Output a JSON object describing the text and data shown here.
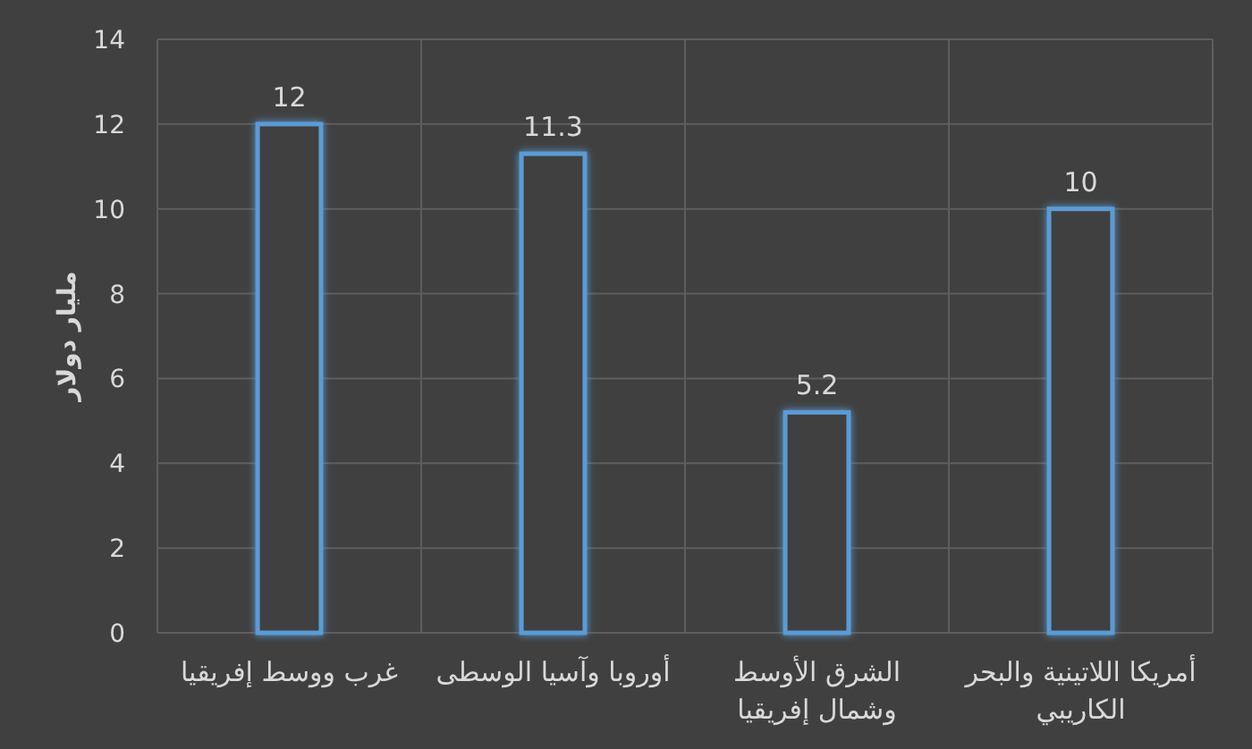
{
  "chart_data": {
    "type": "bar",
    "ylabel": "مليار دولار",
    "categories": [
      "غرب ووسط إفريقيا",
      "أوروبا وآسيا الوسطى",
      "الشرق الأوسط وشمال إفريقيا",
      "أمريكا اللاتينية والبحر الكاريبي"
    ],
    "values": [
      12,
      11.3,
      5.2,
      10
    ],
    "color": "#5b9bd5",
    "data_labels": true,
    "ylim": [
      0,
      14
    ],
    "yticks": [
      0,
      2,
      4,
      6,
      8,
      10,
      12,
      14
    ],
    "grid": true
  }
}
